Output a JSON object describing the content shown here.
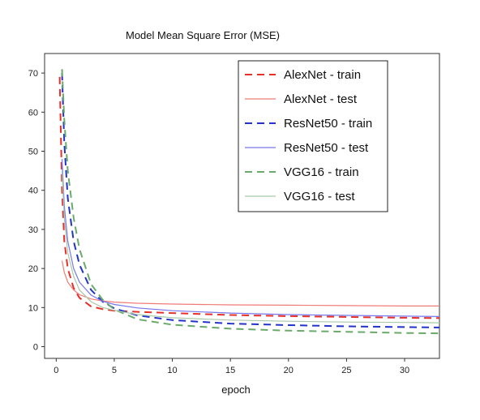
{
  "chart_data": {
    "type": "line",
    "title": "Model Mean Square Error (MSE)",
    "xlabel": "epoch",
    "ylabel": "",
    "xlim": [
      -1,
      33
    ],
    "ylim": [
      -3,
      75
    ],
    "xticks": [
      0,
      5,
      10,
      15,
      20,
      25,
      30
    ],
    "yticks": [
      0,
      10,
      20,
      30,
      40,
      50,
      60,
      70
    ],
    "grid": false,
    "legend_position": "top-right",
    "series": [
      {
        "name": "AlexNet - train",
        "color": "#e8302a",
        "style": "dashed",
        "x": [
          0.3,
          0.5,
          0.7,
          1,
          1.5,
          2,
          3,
          4,
          5,
          7,
          10,
          15,
          20,
          25,
          30,
          33
        ],
        "y": [
          69,
          40,
          27,
          20,
          15,
          12.5,
          10.3,
          9.6,
          9.2,
          8.9,
          8.6,
          8.1,
          7.8,
          7.6,
          7.4,
          7.3
        ]
      },
      {
        "name": "AlexNet - test",
        "color": "#f07b76",
        "style": "solid",
        "x": [
          0.5,
          0.7,
          1,
          1.5,
          2,
          3,
          4,
          5,
          7,
          10,
          15,
          20,
          25,
          30,
          33
        ],
        "y": [
          22,
          19,
          16.5,
          14.5,
          13.3,
          12.2,
          11.7,
          11.4,
          11.1,
          10.9,
          10.7,
          10.6,
          10.5,
          10.4,
          10.4
        ]
      },
      {
        "name": "ResNet50 - train",
        "color": "#2233cc",
        "style": "dashed",
        "x": [
          0.5,
          0.7,
          1,
          1.5,
          2,
          3,
          4,
          5,
          7,
          10,
          15,
          20,
          25,
          30,
          33
        ],
        "y": [
          70,
          52,
          38,
          27,
          21,
          14.5,
          11.5,
          9.8,
          8,
          6.8,
          5.9,
          5.5,
          5.2,
          5.0,
          4.9
        ]
      },
      {
        "name": "ResNet50 - test",
        "color": "#7777ee",
        "style": "solid",
        "x": [
          0.5,
          0.7,
          1,
          1.5,
          2,
          3,
          4,
          5,
          7,
          10,
          15,
          20,
          25,
          30,
          33
        ],
        "y": [
          48,
          36,
          27,
          20,
          16.5,
          13.2,
          11.6,
          10.8,
          9.9,
          9.2,
          8.6,
          8.2,
          8.0,
          7.8,
          7.7
        ]
      },
      {
        "name": "VGG16 - train",
        "color": "#6aaa6a",
        "style": "dashed",
        "x": [
          0.5,
          0.7,
          1,
          1.5,
          2,
          3,
          4,
          5,
          7,
          10,
          15,
          20,
          25,
          30,
          33
        ],
        "y": [
          71,
          58,
          45,
          33,
          25,
          16,
          12,
          9.5,
          7,
          5.6,
          4.6,
          4.1,
          3.8,
          3.5,
          3.4
        ]
      },
      {
        "name": "VGG16 - test",
        "color": "#a9c9a9",
        "style": "solid",
        "x": [
          0.5,
          0.7,
          1,
          1.5,
          2,
          3,
          4,
          5,
          7,
          10,
          15,
          20,
          25,
          30,
          33
        ],
        "y": [
          45,
          33,
          24,
          18,
          14.5,
          11.5,
          10,
          9.3,
          8.2,
          7.4,
          6.8,
          6.5,
          6.3,
          6.2,
          6.1
        ]
      }
    ]
  }
}
